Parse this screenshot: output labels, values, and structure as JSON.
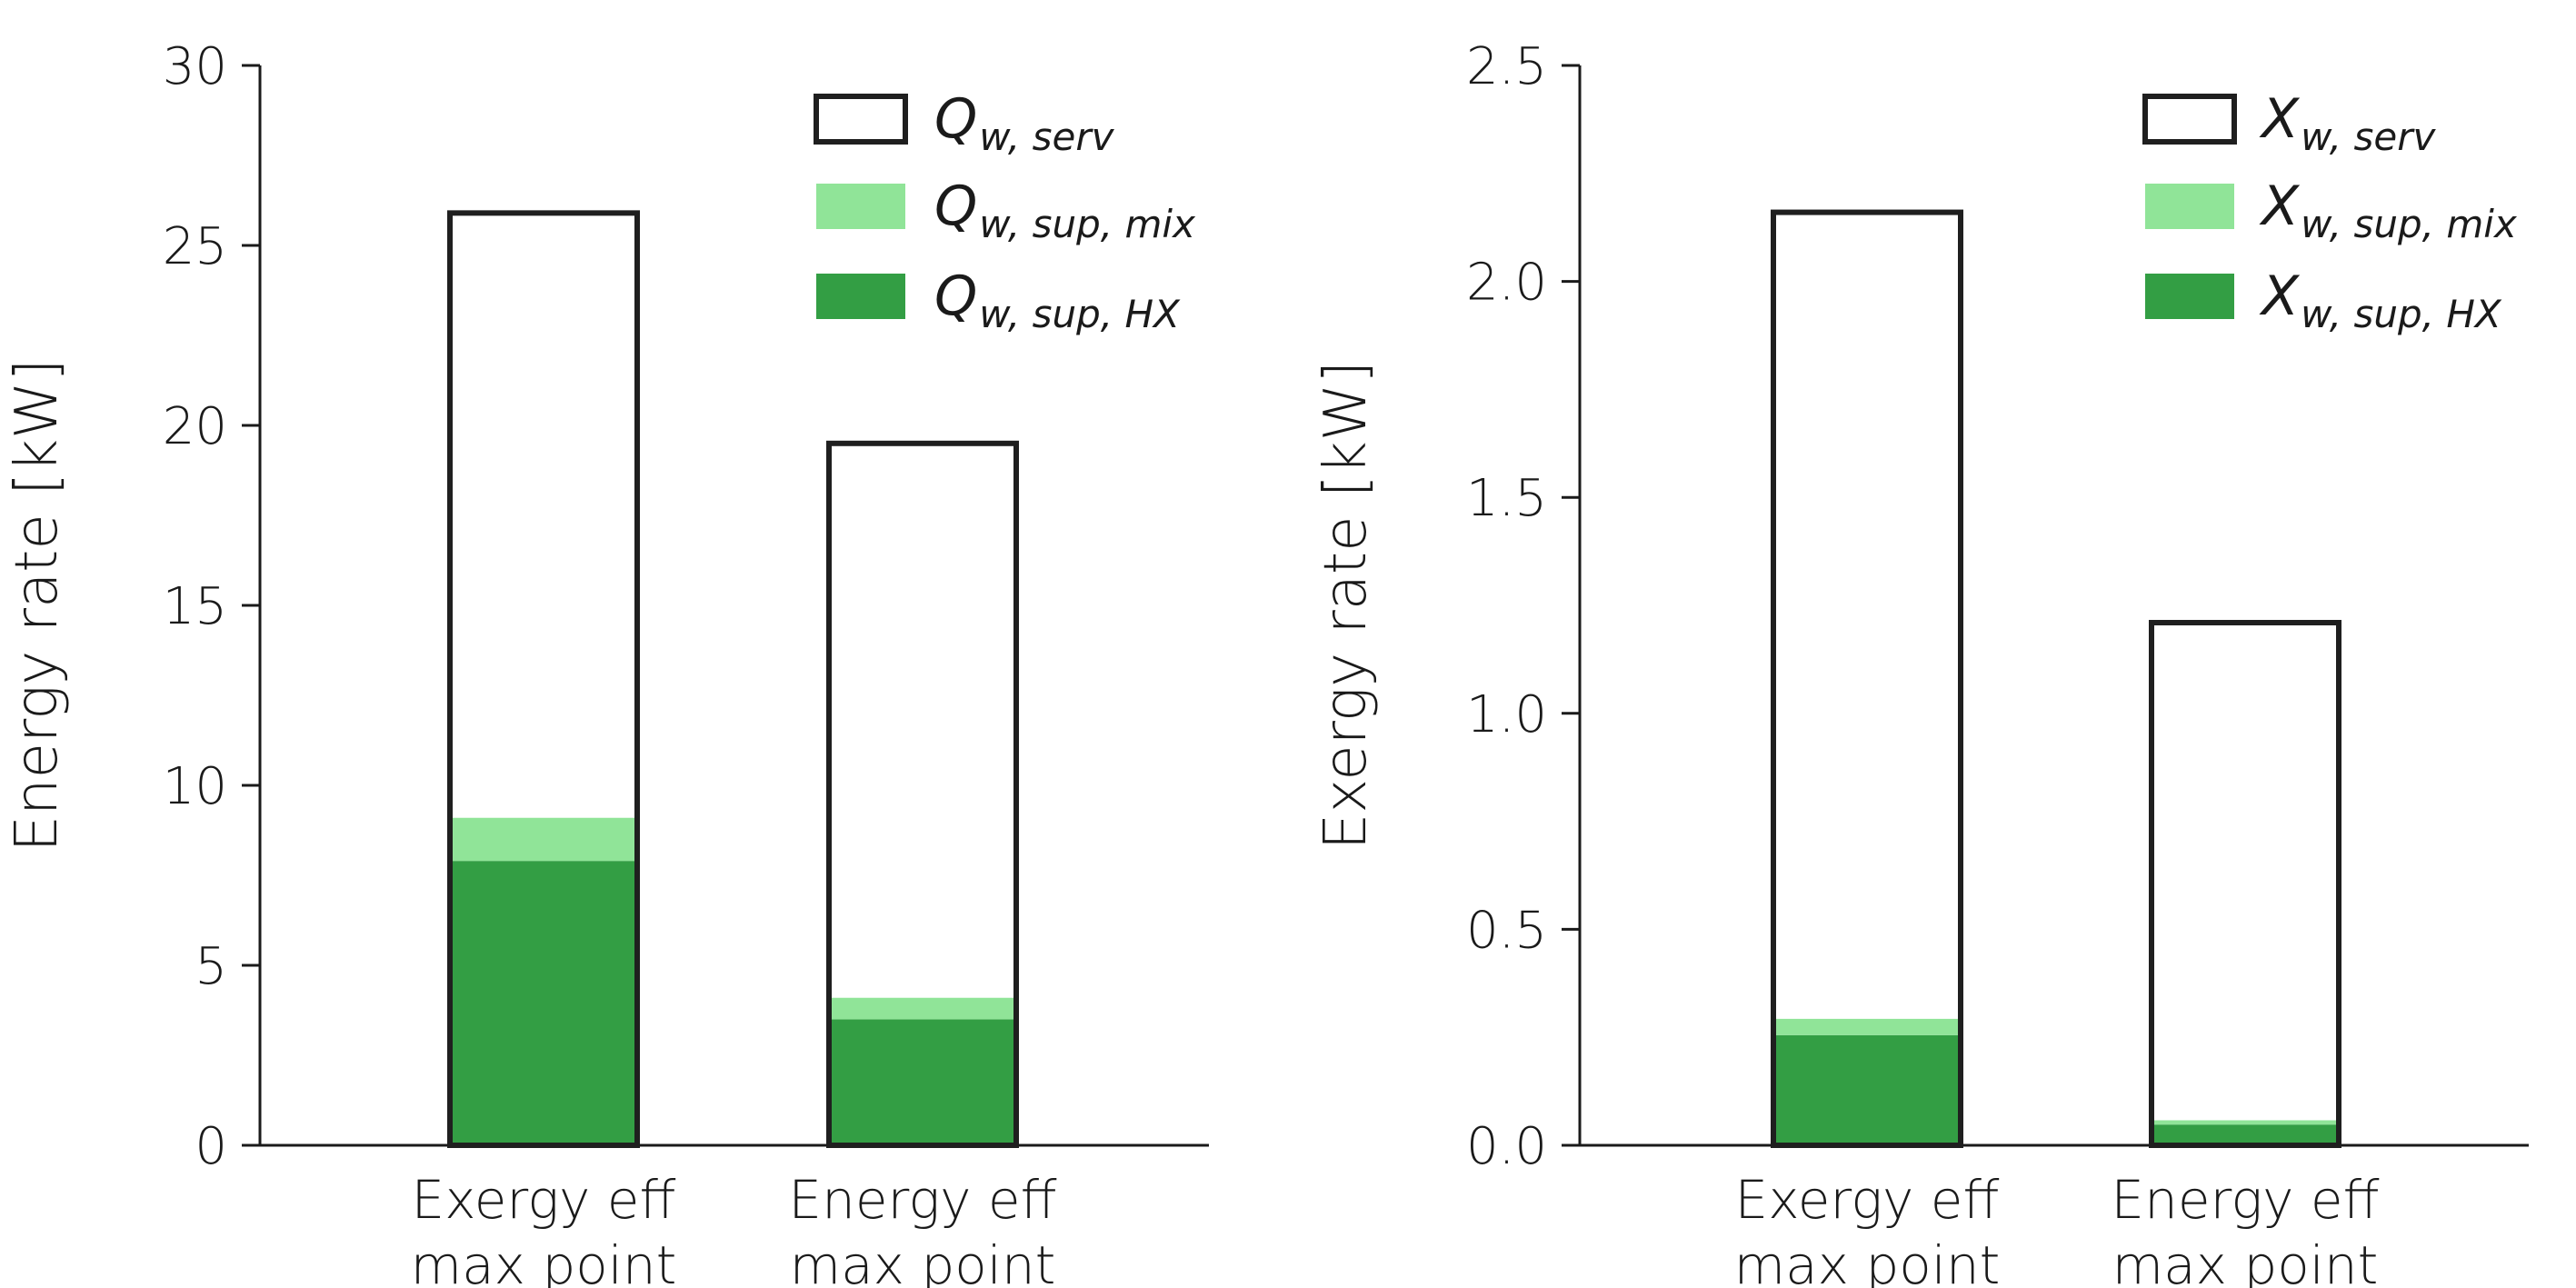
{
  "chart_data": [
    {
      "type": "bar",
      "stacked": true,
      "categories": [
        [
          "Exergy eff",
          "max point"
        ],
        [
          "Energy eff",
          "max point"
        ]
      ],
      "ylabel": "Energy rate [kW]",
      "ylim": [
        0,
        30
      ],
      "yticks": [
        "0",
        "5",
        "10",
        "15",
        "20",
        "25",
        "30"
      ],
      "series": [
        {
          "name": "Q",
          "sub": "w, sup, HX",
          "values": [
            7.9,
            3.5
          ],
          "color": "#339e44"
        },
        {
          "name": "Q",
          "sub": "w, sup, mix",
          "values": [
            1.2,
            0.6
          ],
          "color": "#90e498"
        },
        {
          "name": "Q",
          "sub": "w, serv",
          "values": [
            16.8,
            15.4
          ],
          "color": "#ffffff"
        }
      ],
      "legend_order": [
        2,
        1,
        0
      ],
      "legend_position": "top-right",
      "grid": false
    },
    {
      "type": "bar",
      "stacked": true,
      "categories": [
        [
          "Exergy eff",
          "max point"
        ],
        [
          "Energy eff",
          "max point"
        ]
      ],
      "ylabel": "Exergy rate [kW]",
      "ylim": [
        0,
        2.5
      ],
      "yticks": [
        "0.0",
        "0.5",
        "1.0",
        "1.5",
        "2.0",
        "2.5"
      ],
      "series": [
        {
          "name": "X",
          "sub": "w, sup, HX",
          "values": [
            0.255,
            0.048
          ],
          "color": "#339e44"
        },
        {
          "name": "X",
          "sub": "w, sup, mix",
          "values": [
            0.038,
            0.01
          ],
          "color": "#90e498"
        },
        {
          "name": "X",
          "sub": "w, serv",
          "values": [
            1.867,
            1.152
          ],
          "color": "#ffffff"
        }
      ],
      "legend_order": [
        2,
        1,
        0
      ],
      "legend_position": "top-right",
      "grid": false
    }
  ]
}
